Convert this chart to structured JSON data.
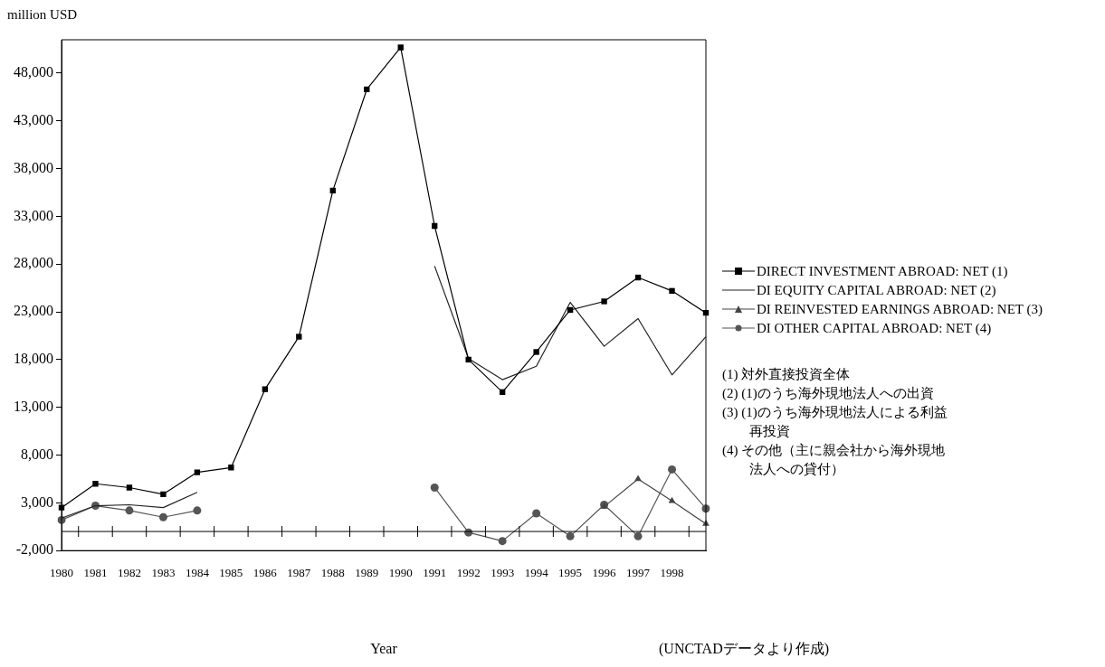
{
  "chart_data": {
    "type": "line",
    "xlabel": "Year",
    "ylabel": "million USD",
    "categories": [
      "1980",
      "1981",
      "1982",
      "1983",
      "1984",
      "1985",
      "1986",
      "1987",
      "1988",
      "1989",
      "1990",
      "1991",
      "1992",
      "1993",
      "1994",
      "1995",
      "1996",
      "1997",
      "1998",
      null
    ],
    "series": [
      {
        "name": "DIRECT INVESTMENT ABROAD: NET (1)",
        "color": "#000000",
        "marker": "square",
        "values": [
          2500,
          5000,
          4600,
          3900,
          6200,
          6700,
          14900,
          20400,
          35700,
          46300,
          50700,
          32000,
          18000,
          14600,
          18800,
          23200,
          24100,
          26600,
          25200,
          22900
        ]
      },
      {
        "name": "DI EQUITY CAPITAL ABROAD: NET (2)",
        "color": "#222222",
        "marker": "none",
        "values": [
          1400,
          2700,
          2800,
          2500,
          4100,
          null,
          null,
          null,
          null,
          null,
          null,
          27800,
          18100,
          15900,
          17300,
          24000,
          19400,
          22300,
          16400,
          20400
        ]
      },
      {
        "name": "DI REINVESTED EARNINGS ABROAD: NET (3)",
        "color": "#444444",
        "marker": "triangle",
        "values": [
          null,
          null,
          null,
          null,
          null,
          null,
          null,
          null,
          null,
          null,
          null,
          null,
          null,
          null,
          null,
          null,
          2600,
          5500,
          3200,
          800
        ]
      },
      {
        "name": "DI OTHER CAPITAL ABROAD: NET (4)",
        "color": "#555555",
        "marker": "circle",
        "values": [
          1200,
          2700,
          2200,
          1500,
          2200,
          null,
          null,
          null,
          null,
          null,
          null,
          4600,
          -100,
          -1000,
          1900,
          -500,
          2800,
          -500,
          6500,
          2400
        ]
      }
    ],
    "ylim": [
      -2000,
      51500
    ],
    "yticks": [
      {
        "value": -2000,
        "label": "-2,000"
      },
      {
        "value": 3000,
        "label": "3,000"
      },
      {
        "value": 8000,
        "label": "8,000"
      },
      {
        "value": 13000,
        "label": "13,000"
      },
      {
        "value": 18000,
        "label": "18,000"
      },
      {
        "value": 23000,
        "label": "23,000"
      },
      {
        "value": 28000,
        "label": "28,000"
      },
      {
        "value": 33000,
        "label": "33,000"
      },
      {
        "value": 38000,
        "label": "38,000"
      },
      {
        "value": 43000,
        "label": "43,000"
      },
      {
        "value": 48000,
        "label": "48,000"
      }
    ],
    "ref_lines": [
      {
        "axis": "y",
        "value": 0,
        "color": "#000000"
      }
    ],
    "grid": false,
    "legend": "right",
    "annotations": [
      "(1) 対外直接投資全体",
      "(2) (1)のうち海外現地法人への出資",
      "(3) (1)のうち海外現地法人による利益再投資",
      "(4) その他（主に親会社から海外現地法人への貸付）",
      "(UNCTADデータより作成)"
    ]
  }
}
